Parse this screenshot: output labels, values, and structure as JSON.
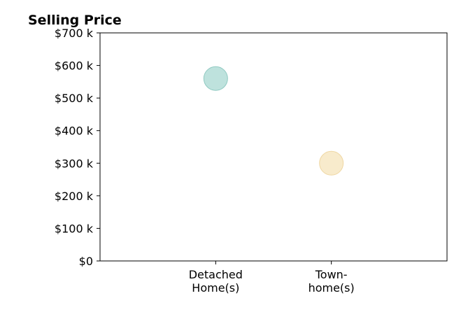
{
  "chart_data": {
    "type": "scatter",
    "title": "Selling Price",
    "xlabel": "",
    "ylabel": "",
    "categories": [
      [
        "Detached",
        "Home(s)"
      ],
      [
        "Town-",
        "home(s)"
      ]
    ],
    "values": [
      560000,
      300000
    ],
    "point_colors": [
      "#a8d8d2",
      "#f6e4bb"
    ],
    "point_edge_colors": [
      "#8fc9c1",
      "#efd7a3"
    ],
    "ylim": [
      0,
      700000
    ],
    "yticks": [
      0,
      100000,
      200000,
      300000,
      400000,
      500000,
      600000,
      700000
    ],
    "ytick_labels": [
      "$0",
      "$100 k",
      "$200 k",
      "$300 k",
      "$400 k",
      "$500 k",
      "$600 k",
      "$700 k"
    ],
    "grid": false,
    "legend": "none"
  }
}
